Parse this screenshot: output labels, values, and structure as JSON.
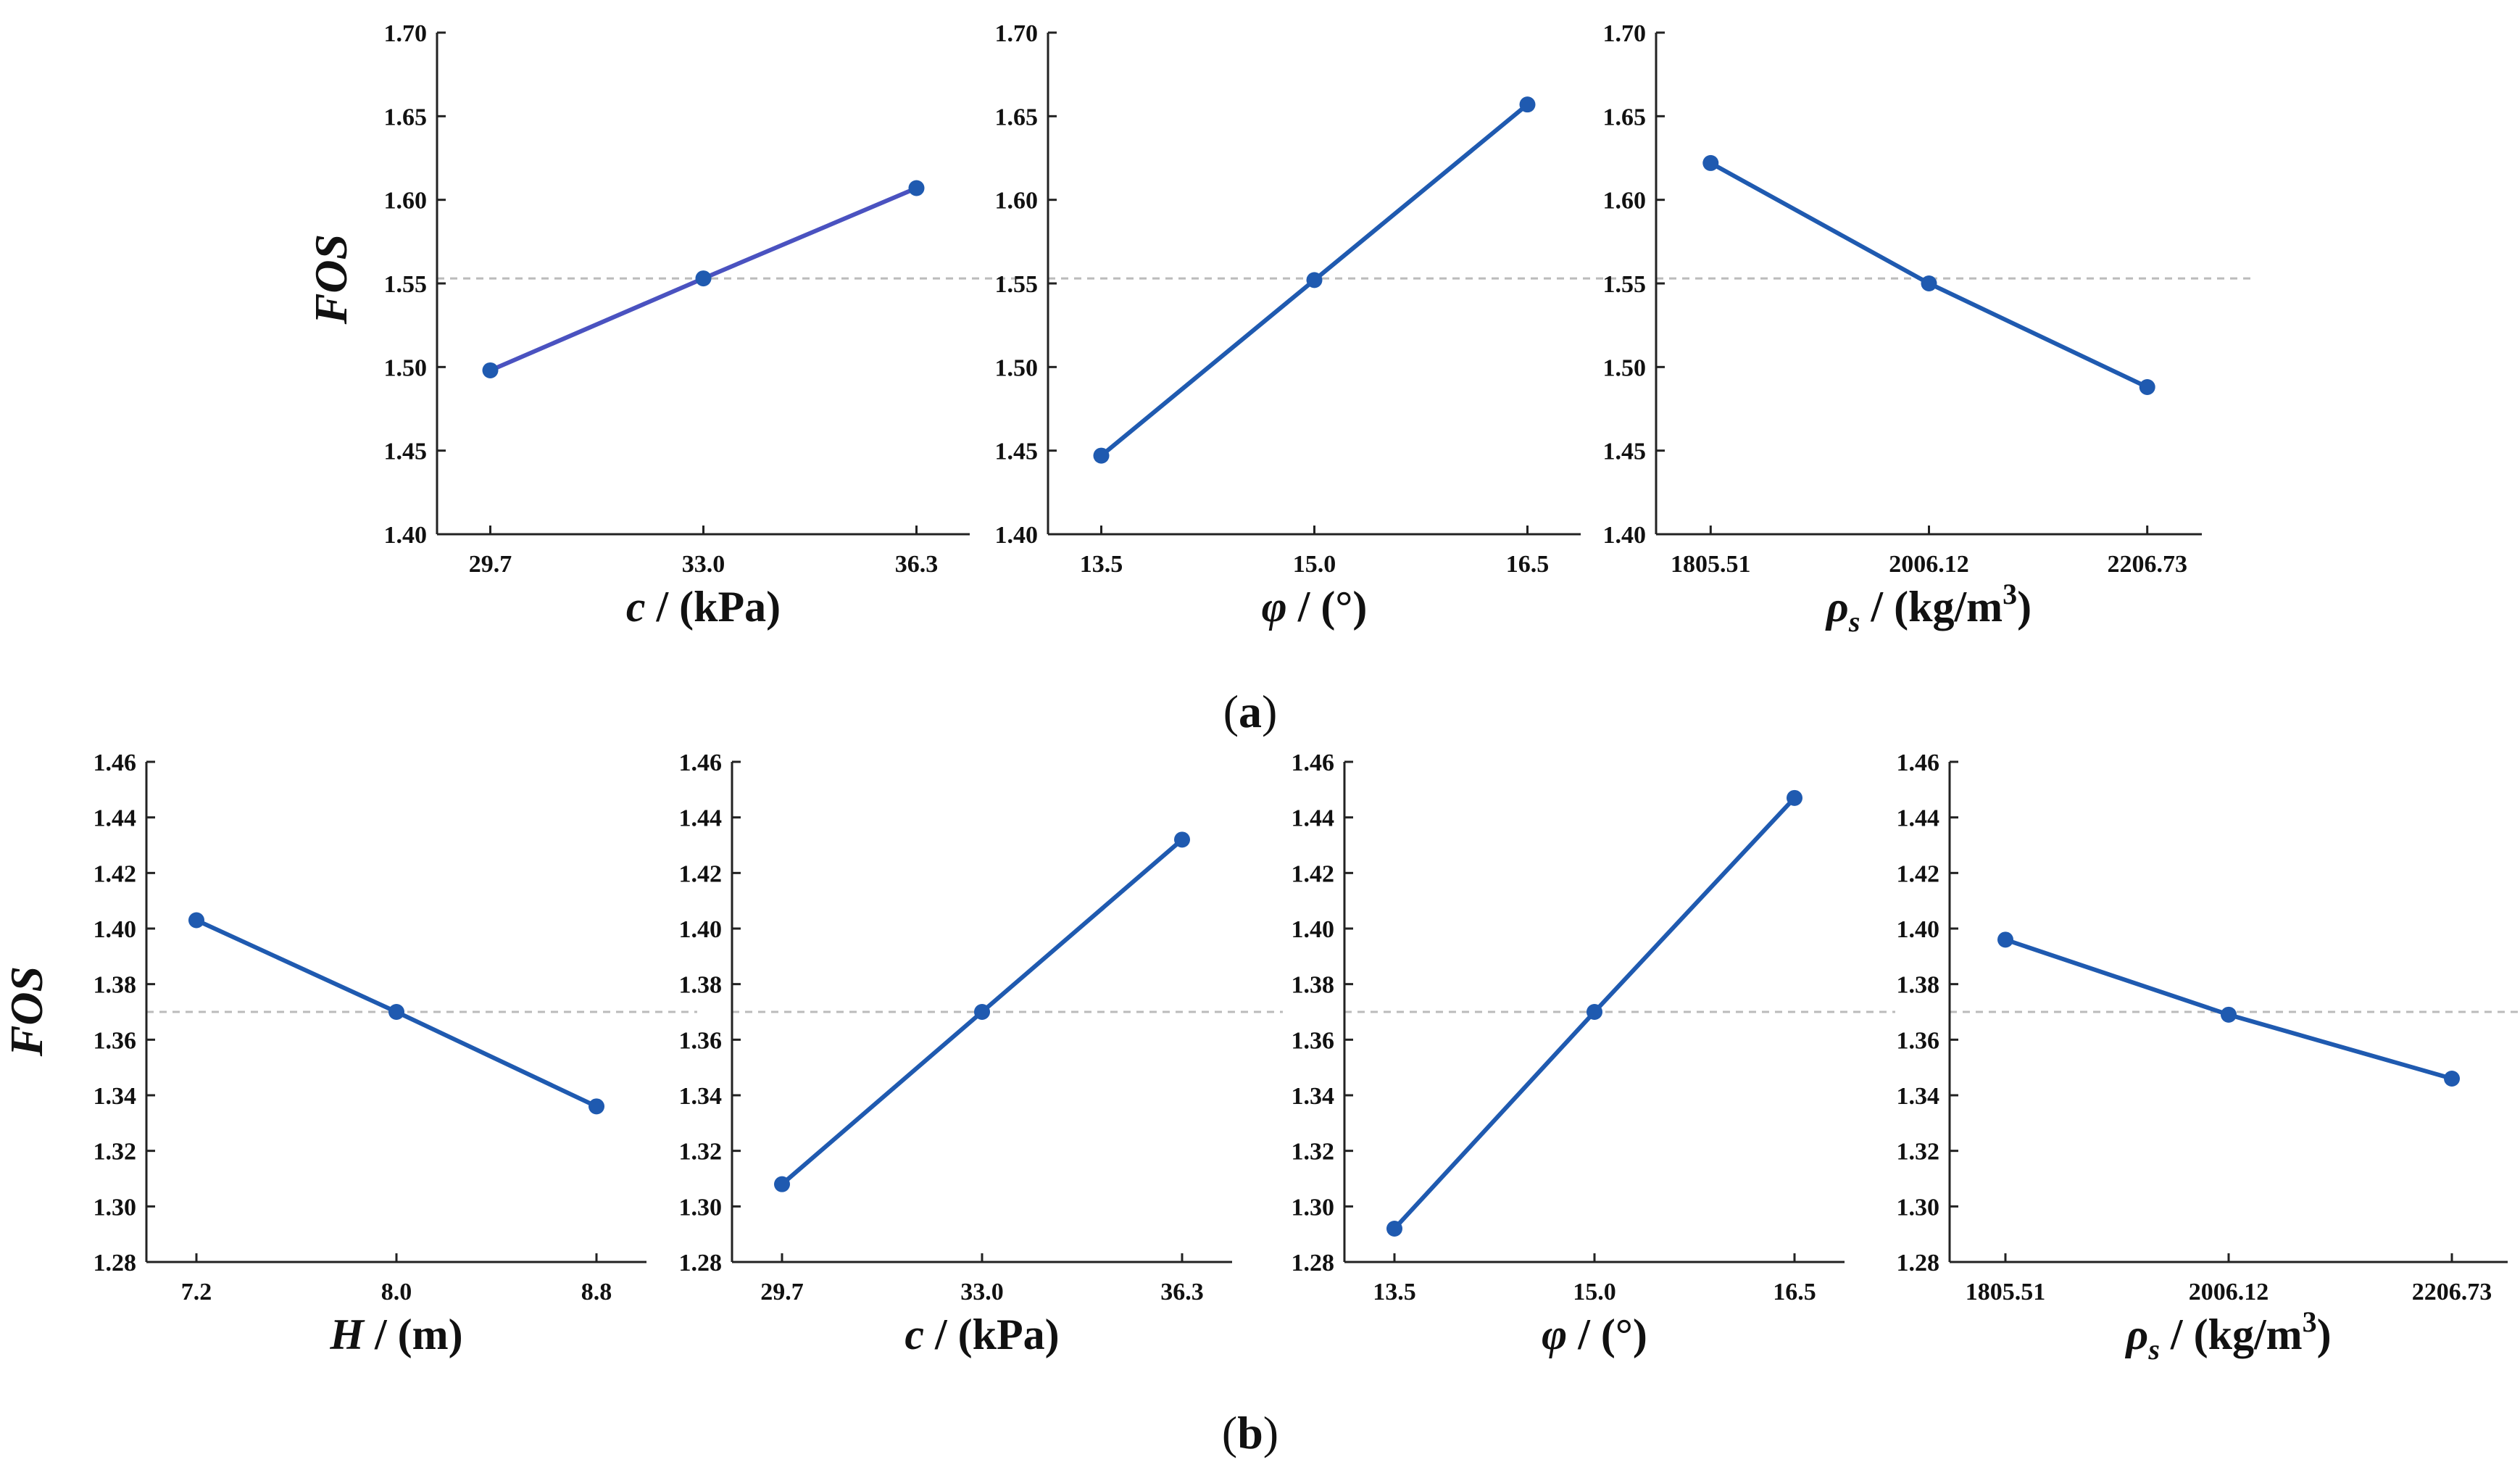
{
  "figure": {
    "panel_a_label": "a",
    "panel_b_label": "b"
  },
  "chart_data": [
    {
      "type": "line",
      "row": "a",
      "col": 0,
      "categories": [
        "29.7",
        "33.0",
        "36.3"
      ],
      "values": [
        1.498,
        1.553,
        1.607
      ],
      "ylim": [
        1.4,
        1.7
      ],
      "yticks": [
        "1.40",
        "1.45",
        "1.50",
        "1.55",
        "1.60",
        "1.65",
        "1.70"
      ],
      "reference": 1.553,
      "xlabel_main": "c",
      "xlabel_sub": "",
      "xlabel_unit": " / (kPa)",
      "xlabel_sup": "",
      "ylabel": "FOS",
      "color": "#4a52c0",
      "marker_color": "#1f5ab0"
    },
    {
      "type": "line",
      "row": "a",
      "col": 1,
      "categories": [
        "13.5",
        "15.0",
        "16.5"
      ],
      "values": [
        1.447,
        1.552,
        1.657
      ],
      "ylim": [
        1.4,
        1.7
      ],
      "yticks": [
        "1.40",
        "1.45",
        "1.50",
        "1.55",
        "1.60",
        "1.65",
        "1.70"
      ],
      "reference": 1.553,
      "xlabel_main": "φ",
      "xlabel_sub": "",
      "xlabel_unit": " / (°)",
      "xlabel_sup": "",
      "ylabel": "",
      "color": "#1f5ab0",
      "marker_color": "#1f5ab0"
    },
    {
      "type": "line",
      "row": "a",
      "col": 2,
      "categories": [
        "1805.51",
        "2006.12",
        "2206.73"
      ],
      "values": [
        1.622,
        1.55,
        1.488
      ],
      "ylim": [
        1.4,
        1.7
      ],
      "yticks": [
        "1.40",
        "1.45",
        "1.50",
        "1.55",
        "1.60",
        "1.65",
        "1.70"
      ],
      "reference": 1.553,
      "xlabel_main": "ρ",
      "xlabel_sub": "s",
      "xlabel_unit": " / (kg/m",
      "xlabel_sup": "3",
      "ylabel": "",
      "color": "#1f5ab0",
      "marker_color": "#1f5ab0"
    },
    {
      "type": "line",
      "row": "b",
      "col": 0,
      "categories": [
        "7.2",
        "8.0",
        "8.8"
      ],
      "values": [
        1.403,
        1.37,
        1.336
      ],
      "ylim": [
        1.28,
        1.46
      ],
      "yticks": [
        "1.28",
        "1.30",
        "1.32",
        "1.34",
        "1.36",
        "1.38",
        "1.40",
        "1.42",
        "1.44",
        "1.46"
      ],
      "reference": 1.37,
      "xlabel_main": "H",
      "xlabel_sub": "",
      "xlabel_unit": " / (m)",
      "xlabel_sup": "",
      "ylabel": "FOS",
      "color": "#1f5ab0",
      "marker_color": "#1f5ab0"
    },
    {
      "type": "line",
      "row": "b",
      "col": 1,
      "categories": [
        "29.7",
        "33.0",
        "36.3"
      ],
      "values": [
        1.308,
        1.37,
        1.432
      ],
      "ylim": [
        1.28,
        1.46
      ],
      "yticks": [
        "1.28",
        "1.30",
        "1.32",
        "1.34",
        "1.36",
        "1.38",
        "1.40",
        "1.42",
        "1.44",
        "1.46"
      ],
      "reference": 1.37,
      "xlabel_main": "c",
      "xlabel_sub": "",
      "xlabel_unit": " / (kPa)",
      "xlabel_sup": "",
      "ylabel": "",
      "color": "#1f5ab0",
      "marker_color": "#1f5ab0"
    },
    {
      "type": "line",
      "row": "b",
      "col": 2,
      "categories": [
        "13.5",
        "15.0",
        "16.5"
      ],
      "values": [
        1.292,
        1.37,
        1.447
      ],
      "ylim": [
        1.28,
        1.46
      ],
      "yticks": [
        "1.28",
        "1.30",
        "1.32",
        "1.34",
        "1.36",
        "1.38",
        "1.40",
        "1.42",
        "1.44",
        "1.46"
      ],
      "reference": 1.37,
      "xlabel_main": "φ",
      "xlabel_sub": "",
      "xlabel_unit": " / (°)",
      "xlabel_sup": "",
      "ylabel": "",
      "color": "#1f5ab0",
      "marker_color": "#1f5ab0"
    },
    {
      "type": "line",
      "row": "b",
      "col": 3,
      "categories": [
        "1805.51",
        "2006.12",
        "2206.73"
      ],
      "values": [
        1.396,
        1.369,
        1.346
      ],
      "ylim": [
        1.28,
        1.46
      ],
      "yticks": [
        "1.28",
        "1.30",
        "1.32",
        "1.34",
        "1.36",
        "1.38",
        "1.40",
        "1.42",
        "1.44",
        "1.46"
      ],
      "reference": 1.37,
      "xlabel_main": "ρ",
      "xlabel_sub": "s",
      "xlabel_unit": " / (kg/m",
      "xlabel_sup": "3",
      "ylabel": "",
      "color": "#1f5ab0",
      "marker_color": "#1f5ab0"
    }
  ]
}
